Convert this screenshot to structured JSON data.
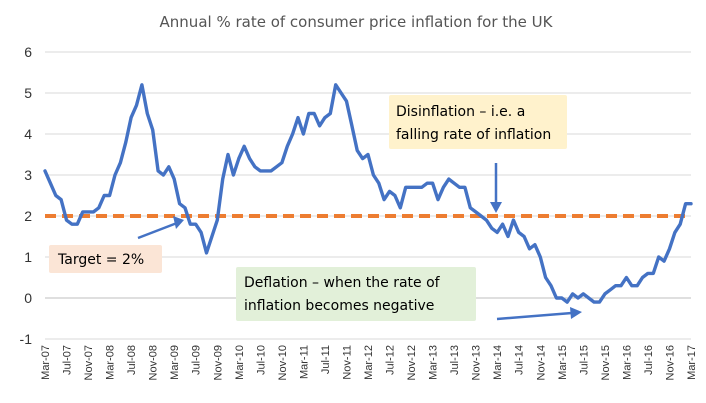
{
  "chart_data": {
    "type": "line",
    "title": "Annual % rate of consumer price inflation for the UK",
    "xlabel": "",
    "ylabel": "",
    "ylim": [
      -1,
      6
    ],
    "yticks": [
      -1,
      0,
      1,
      2,
      3,
      4,
      5,
      6
    ],
    "xtick_labels": [
      "Mar-07",
      "Jul-07",
      "Nov-07",
      "Mar-08",
      "Jul-08",
      "Nov-08",
      "Mar-09",
      "Jul-09",
      "Nov-09",
      "Mar-10",
      "Jul-10",
      "Nov-10",
      "Mar-11",
      "Jul-11",
      "Nov-11",
      "Mar-12",
      "Jul-12",
      "Nov-12",
      "Mar-13",
      "Jul-13",
      "Nov-13",
      "Mar-14",
      "Jul-14",
      "Nov-14",
      "Mar-15",
      "Jul-15",
      "Nov-15",
      "Mar-16",
      "Jul-16",
      "Nov-16",
      "Mar-17"
    ],
    "grid": "horizontal",
    "target_line": 2,
    "series": [
      {
        "x_start": "Mar-07",
        "interval": "monthly",
        "color": "#4472c4",
        "values": [
          3.1,
          2.8,
          2.5,
          2.4,
          1.9,
          1.8,
          1.8,
          2.1,
          2.1,
          2.1,
          2.2,
          2.5,
          2.5,
          3.0,
          3.3,
          3.8,
          4.4,
          4.7,
          5.2,
          4.5,
          4.1,
          3.1,
          3.0,
          3.2,
          2.9,
          2.3,
          2.2,
          1.8,
          1.8,
          1.6,
          1.1,
          1.5,
          1.9,
          2.9,
          3.5,
          3.0,
          3.4,
          3.7,
          3.4,
          3.2,
          3.1,
          3.1,
          3.1,
          3.2,
          3.3,
          3.7,
          4.0,
          4.4,
          4.0,
          4.5,
          4.5,
          4.2,
          4.4,
          4.5,
          5.2,
          5.0,
          4.8,
          4.2,
          3.6,
          3.4,
          3.5,
          3.0,
          2.8,
          2.4,
          2.6,
          2.5,
          2.2,
          2.7,
          2.7,
          2.7,
          2.7,
          2.8,
          2.8,
          2.4,
          2.7,
          2.9,
          2.8,
          2.7,
          2.7,
          2.2,
          2.1,
          2.0,
          1.9,
          1.7,
          1.6,
          1.8,
          1.5,
          1.9,
          1.6,
          1.5,
          1.2,
          1.3,
          1.0,
          0.5,
          0.3,
          0.0,
          0.0,
          -0.1,
          0.1,
          0.0,
          0.1,
          0.0,
          -0.1,
          -0.1,
          0.1,
          0.2,
          0.3,
          0.3,
          0.5,
          0.3,
          0.3,
          0.5,
          0.6,
          0.6,
          1.0,
          0.9,
          1.2,
          1.6,
          1.8,
          2.3,
          2.3
        ]
      }
    ],
    "annotations": [
      {
        "lines": [
          "Disinflation – i.e. a",
          "falling rate of inflation"
        ]
      },
      {
        "lines": [
          "Target = 2%"
        ]
      },
      {
        "lines": [
          "Deflation – when the rate of",
          "inflation becomes negative"
        ]
      }
    ],
    "colors": {
      "series": "#4472c4",
      "target": "#ed7d31",
      "disinflation_box": "#fff2cc",
      "target_box": "#fbe5d6",
      "deflation_box": "#e2f0d9",
      "gridline": "#d9d9d9"
    }
  }
}
